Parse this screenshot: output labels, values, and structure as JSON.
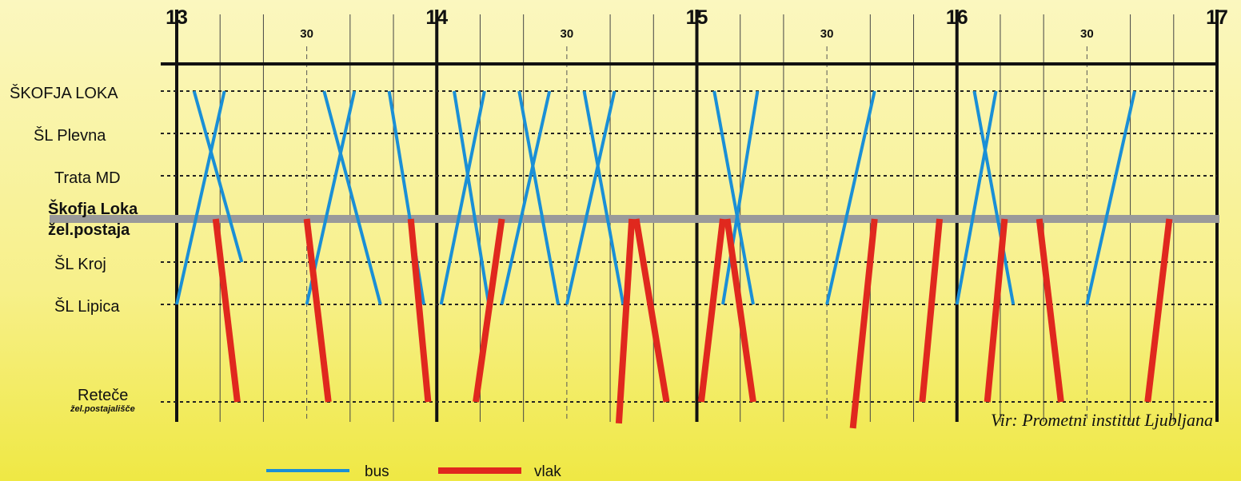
{
  "chart_data": {
    "type": "line",
    "x_range": [
      "13:00",
      "17:00"
    ],
    "x_ticks": [
      {
        "time": "13:00",
        "label": "13",
        "major": true
      },
      {
        "time": "13:30",
        "label": "30",
        "major": false
      },
      {
        "time": "14:00",
        "label": "14",
        "major": true
      },
      {
        "time": "14:30",
        "label": "30",
        "major": false
      },
      {
        "time": "15:00",
        "label": "15",
        "major": true
      },
      {
        "time": "15:30",
        "label": "30",
        "major": false
      },
      {
        "time": "16:00",
        "label": "16",
        "major": true
      },
      {
        "time": "16:30",
        "label": "30",
        "major": false
      },
      {
        "time": "17:00",
        "label": "17",
        "major": true
      }
    ],
    "stations": [
      {
        "name": "ŠKOFJA LOKA",
        "sub": "",
        "bold": false
      },
      {
        "name": "ŠL Plevna",
        "sub": "",
        "bold": false
      },
      {
        "name": "Trata MD",
        "sub": "",
        "bold": false
      },
      {
        "name": "Škofja Loka",
        "sub": "žel.postaja",
        "bold": true
      },
      {
        "name": "ŠL Kroj",
        "sub": "",
        "bold": false
      },
      {
        "name": "ŠL Lipica",
        "sub": "",
        "bold": false
      },
      {
        "name": "Reteče",
        "sub": "žel.postajališče",
        "bold": false
      }
    ],
    "series": [
      {
        "name": "bus",
        "color": "#1a8fd6",
        "trips": [
          {
            "from_time": "13:04",
            "from_station": 0,
            "to_time": "13:15",
            "to_station": 4
          },
          {
            "from_time": "13:11",
            "from_station": 0,
            "to_time": "13:00",
            "to_station": 5
          },
          {
            "from_time": "13:34",
            "from_station": 0,
            "to_time": "13:47",
            "to_station": 5
          },
          {
            "from_time": "13:41",
            "from_station": 0,
            "to_time": "13:30",
            "to_station": 5
          },
          {
            "from_time": "13:49",
            "from_station": 0,
            "to_time": "13:57",
            "to_station": 5
          },
          {
            "from_time": "14:04",
            "from_station": 0,
            "to_time": "14:12",
            "to_station": 5
          },
          {
            "from_time": "14:11",
            "from_station": 0,
            "to_time": "14:01",
            "to_station": 5
          },
          {
            "from_time": "14:19",
            "from_station": 0,
            "to_time": "14:28",
            "to_station": 5
          },
          {
            "from_time": "14:26",
            "from_station": 0,
            "to_time": "14:15",
            "to_station": 5
          },
          {
            "from_time": "14:34",
            "from_station": 0,
            "to_time": "14:43",
            "to_station": 5
          },
          {
            "from_time": "14:41",
            "from_station": 0,
            "to_time": "14:30",
            "to_station": 5
          },
          {
            "from_time": "15:04",
            "from_station": 0,
            "to_time": "15:13",
            "to_station": 5
          },
          {
            "from_time": "15:14",
            "from_station": 0,
            "to_time": "15:06",
            "to_station": 5
          },
          {
            "from_time": "15:41",
            "from_station": 0,
            "to_time": "15:30",
            "to_station": 5
          },
          {
            "from_time": "16:04",
            "from_station": 0,
            "to_time": "16:13",
            "to_station": 5
          },
          {
            "from_time": "16:09",
            "from_station": 0,
            "to_time": "16:00",
            "to_station": 5
          },
          {
            "from_time": "16:41",
            "from_station": 0,
            "to_time": "16:30",
            "to_station": 5
          }
        ]
      },
      {
        "name": "vlak",
        "color": "#e0281e",
        "trips": [
          {
            "from_time": "13:09",
            "from_station": 3,
            "to_time": "13:14",
            "to_station": 6
          },
          {
            "from_time": "13:30",
            "from_station": 3,
            "to_time": "13:35",
            "to_station": 6
          },
          {
            "from_time": "13:58",
            "from_station": 6,
            "to_time": "13:54",
            "to_station": 3
          },
          {
            "from_time": "14:15",
            "from_station": 3,
            "to_time": "14:09",
            "to_station": 6
          },
          {
            "from_time": "14:45",
            "from_station": 3,
            "to_time": "14:42",
            "to_station": 6.22
          },
          {
            "from_time": "14:46",
            "from_station": 3,
            "to_time": "14:53",
            "to_station": 6
          },
          {
            "from_time": "15:06",
            "from_station": 3,
            "to_time": "15:01",
            "to_station": 6
          },
          {
            "from_time": "15:07",
            "from_station": 3,
            "to_time": "15:13",
            "to_station": 6
          },
          {
            "from_time": "15:41",
            "from_station": 3,
            "to_time": "15:36",
            "to_station": 6.27
          },
          {
            "from_time": "15:56",
            "from_station": 3,
            "to_time": "15:52",
            "to_station": 6
          },
          {
            "from_time": "16:11",
            "from_station": 3,
            "to_time": "16:07",
            "to_station": 6
          },
          {
            "from_time": "16:19",
            "from_station": 3,
            "to_time": "16:24",
            "to_station": 6
          },
          {
            "from_time": "16:49",
            "from_station": 3,
            "to_time": "16:44",
            "to_station": 6
          }
        ]
      }
    ]
  },
  "source": "Vir: Prometni institut Ljubljana",
  "legend": [
    {
      "label": "bus",
      "color": "#1a8fd6"
    },
    {
      "label": "vlak",
      "color": "#e0281e"
    }
  ]
}
